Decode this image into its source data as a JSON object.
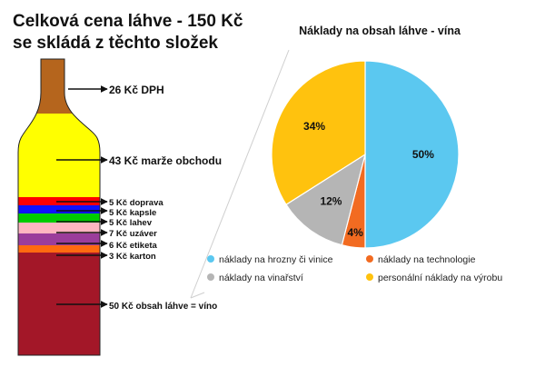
{
  "title_line1": "Celková cena láhve - 150 Kč",
  "title_line2": "se skládá z těchto složek",
  "chart_data": [
    {
      "type": "bar",
      "stacked": true,
      "orientation": "vertical",
      "categories": [
        "26 Kč DPH",
        "43 Kč marže obchodu",
        "5 Kč doprava",
        "5 Kč kapsle",
        "5 Kč lahev",
        "7 Kč uzáver",
        "6 Kč etiketa",
        "3 Kč karton",
        "50 Kč obsah láhve = víno"
      ],
      "values": [
        26,
        43,
        5,
        5,
        5,
        7,
        6,
        3,
        50
      ],
      "colors": [
        "#b5651d",
        "#ffff00",
        "#ff0000",
        "#1010ff",
        "#00cc00",
        "#ffb6c1",
        "#9b3d9b",
        "#ff6a10",
        "#a31728"
      ],
      "unit": "Kč",
      "total": 150
    },
    {
      "type": "pie",
      "title": "Náklady na obsah láhve - vína",
      "categories": [
        "náklady na hrozny či vinice",
        "náklady na technologie",
        "náklady na vinařství",
        "personální náklady na výrobu"
      ],
      "values": [
        50,
        4,
        12,
        34
      ],
      "labels": [
        "50%",
        "4%",
        "12%",
        "34%"
      ],
      "colors": [
        "#5bc8f0",
        "#f26b21",
        "#b5b5b5",
        "#ffc20e"
      ],
      "legend": "bottom"
    }
  ]
}
